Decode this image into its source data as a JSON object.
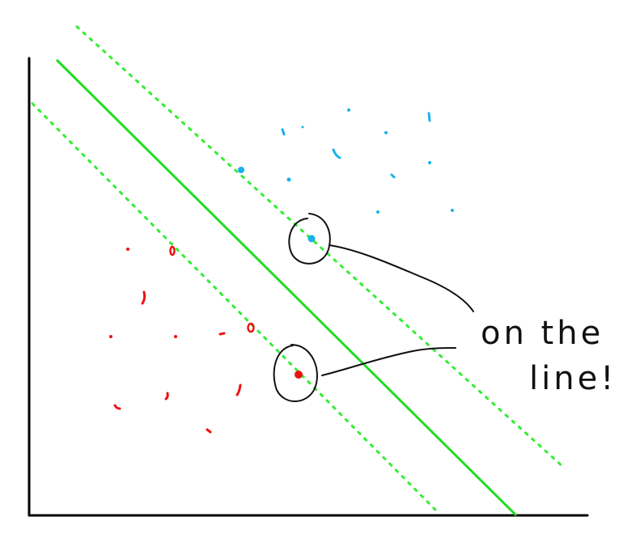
{
  "annotation": {
    "line1": "on the",
    "line2": "line!"
  },
  "colors": {
    "background": "#ffffff",
    "axes": "#000000",
    "boundary": "#22dd22",
    "margin": "#33ee33",
    "class_blue": "#1ab2e8",
    "class_red": "#ee1111",
    "ink": "#111111"
  },
  "points": {
    "blue_count": 15,
    "red_count": 14,
    "support_vectors": [
      "blue",
      "red"
    ]
  }
}
